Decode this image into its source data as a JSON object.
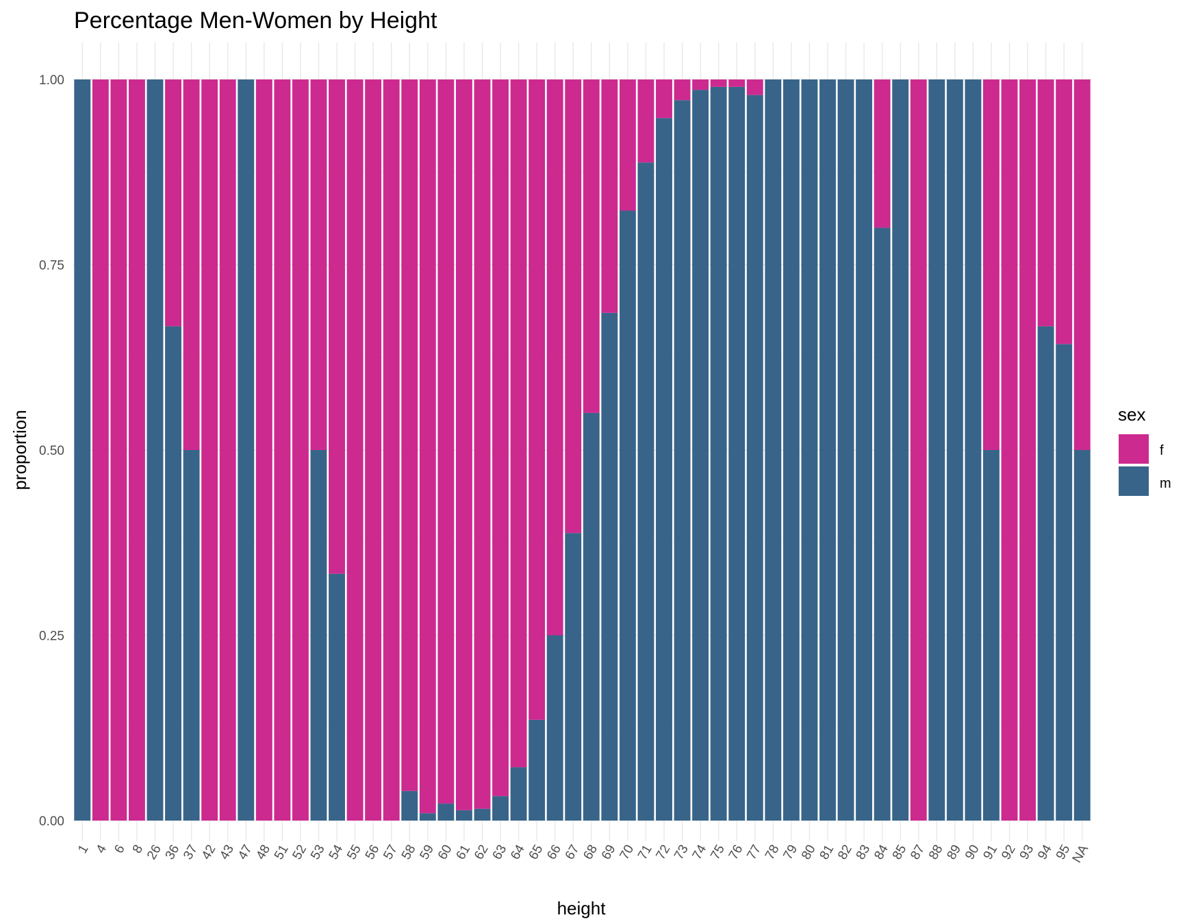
{
  "chart_data": {
    "type": "bar",
    "stacked": true,
    "normalized": true,
    "title": "Percentage Men-Women by Height",
    "xlabel": "height",
    "ylabel": "proportion",
    "ylim": [
      0,
      1
    ],
    "y_ticks": [
      "0.00",
      "0.25",
      "0.50",
      "0.75",
      "1.00"
    ],
    "grid": true,
    "legend": {
      "title": "sex",
      "position": "right",
      "entries": [
        {
          "label": "f",
          "color": "#CC2A8F"
        },
        {
          "label": "m",
          "color": "#386489"
        }
      ]
    },
    "categories": [
      "1",
      "4",
      "6",
      "8",
      "26",
      "36",
      "37",
      "42",
      "43",
      "47",
      "48",
      "51",
      "52",
      "53",
      "54",
      "55",
      "56",
      "57",
      "58",
      "59",
      "60",
      "61",
      "62",
      "63",
      "64",
      "65",
      "66",
      "67",
      "68",
      "69",
      "70",
      "71",
      "72",
      "73",
      "74",
      "75",
      "76",
      "77",
      "78",
      "79",
      "80",
      "81",
      "82",
      "83",
      "84",
      "85",
      "87",
      "88",
      "89",
      "90",
      "91",
      "92",
      "93",
      "94",
      "95",
      "NA"
    ],
    "series": [
      {
        "name": "m",
        "color": "#386489",
        "values": [
          1.0,
          0.0,
          0.0,
          0.0,
          1.0,
          0.667,
          0.5,
          0.0,
          0.0,
          1.0,
          0.0,
          0.0,
          0.0,
          0.5,
          0.333,
          0.0,
          0.0,
          0.0,
          0.04,
          0.01,
          0.023,
          0.014,
          0.016,
          0.033,
          0.072,
          0.136,
          0.25,
          0.388,
          0.55,
          0.685,
          0.823,
          0.888,
          0.948,
          0.972,
          0.986,
          0.99,
          0.99,
          0.979,
          1.0,
          1.0,
          1.0,
          1.0,
          1.0,
          1.0,
          0.8,
          1.0,
          0.0,
          1.0,
          1.0,
          1.0,
          0.5,
          0.0,
          0.0,
          0.667,
          0.643,
          0.5
        ]
      },
      {
        "name": "f",
        "color": "#CC2A8F",
        "values": [
          0.0,
          1.0,
          1.0,
          1.0,
          0.0,
          0.333,
          0.5,
          1.0,
          1.0,
          0.0,
          1.0,
          1.0,
          1.0,
          0.5,
          0.667,
          1.0,
          1.0,
          1.0,
          0.96,
          0.99,
          0.977,
          0.986,
          0.984,
          0.967,
          0.928,
          0.864,
          0.75,
          0.612,
          0.45,
          0.315,
          0.177,
          0.112,
          0.052,
          0.028,
          0.014,
          0.01,
          0.01,
          0.021,
          0.0,
          0.0,
          0.0,
          0.0,
          0.0,
          0.0,
          0.2,
          0.0,
          1.0,
          0.0,
          0.0,
          0.0,
          0.5,
          1.0,
          1.0,
          0.333,
          0.357,
          0.5
        ]
      }
    ]
  }
}
